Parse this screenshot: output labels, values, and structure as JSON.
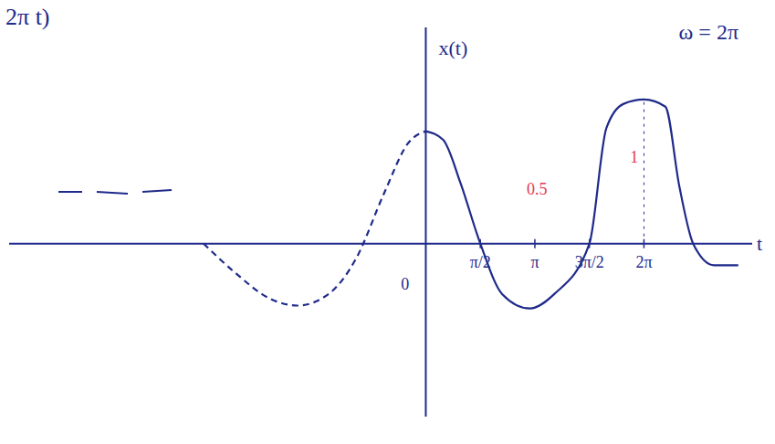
{
  "chart_data": {
    "type": "line",
    "title": "ω = 2π",
    "subtitle": "2π t)",
    "x_label": "t",
    "y_label": "x(t)",
    "xlim": [
      -12,
      9.4
    ],
    "ylim": [
      -1.2,
      1.5
    ],
    "xticks": [
      {
        "value": 1.5708,
        "label": "π/2"
      },
      {
        "value": 3.1416,
        "label": "π"
      },
      {
        "value": 4.7124,
        "label": "3π/2"
      },
      {
        "value": 6.2832,
        "label": "2π"
      }
    ],
    "tick_labels": "x",
    "grid": false,
    "series": [
      {
        "color": "#1f2a8a",
        "line_style": "dashed",
        "x": [
          -6.4,
          -5.5,
          -4.5,
          -3.7,
          -2.8,
          -2,
          -1.2,
          -0.5,
          0
        ],
        "values": [
          0,
          -0.2,
          -0.38,
          -0.43,
          -0.35,
          -0.1,
          0.35,
          0.7,
          0.78
        ]
      },
      {
        "color": "#1f2a8a",
        "line_style": "solid",
        "x": [
          0,
          0.5,
          1,
          1.5708,
          2.2,
          3.0,
          3.7,
          4.7124,
          5.2,
          5.7,
          6.2832,
          6.9,
          7.3,
          7.7,
          8.3,
          9
        ],
        "values": [
          0.78,
          0.72,
          0.42,
          0,
          -0.35,
          -0.45,
          -0.35,
          0,
          0.8,
          0.97,
          1,
          0.95,
          0.4,
          0,
          -0.15,
          -0.15
        ]
      }
    ],
    "annotations": [
      {
        "text": "0",
        "x": -0.6,
        "y": -0.28,
        "color": "#1f2a8a"
      },
      {
        "text": "0.5",
        "x": 3.2,
        "y": 0.38,
        "color": "#e53950"
      },
      {
        "text": "1",
        "x": 6.0,
        "y": 0.6,
        "color": "#e53950"
      }
    ]
  }
}
